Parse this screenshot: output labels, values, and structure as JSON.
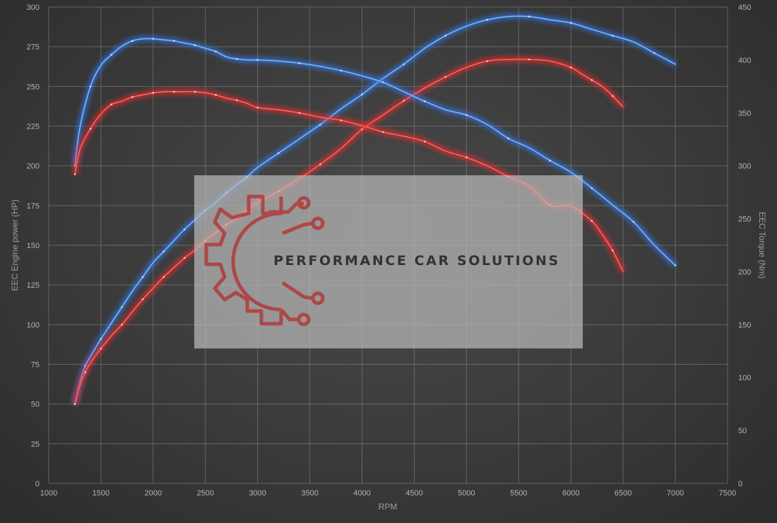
{
  "chart_data": {
    "type": "line",
    "xlabel": "RPM",
    "ylabel_left": "EEC Engine power (HP)",
    "ylabel_right": "EEC Torque (Nm)",
    "xlim": [
      1000,
      7500
    ],
    "ylim_left": [
      0,
      300
    ],
    "ylim_right": [
      0,
      450
    ],
    "x_ticks": [
      "1000",
      "1500",
      "2000",
      "2500",
      "3000",
      "3500",
      "4000",
      "4500",
      "5000",
      "5500",
      "6000",
      "6500",
      "7000",
      "7500"
    ],
    "y_ticks_left": [
      "0",
      "25",
      "50",
      "75",
      "100",
      "125",
      "150",
      "175",
      "200",
      "225",
      "250",
      "275",
      "300"
    ],
    "y_ticks_right": [
      "0",
      "50",
      "100",
      "150",
      "200",
      "250",
      "300",
      "350",
      "400",
      "450"
    ],
    "grid": true,
    "colors": {
      "blue": "#4a8ee8",
      "red": "#e53030",
      "blue_glow": "#2f7fff",
      "red_glow": "#ff2a2a"
    },
    "series": [
      {
        "color": "blue",
        "axis": "left",
        "x": [
          1250,
          1300,
          1350,
          1400,
          1500,
          1600,
          1700,
          1800,
          1900,
          2000,
          2100,
          2200,
          2300,
          2400,
          2500,
          2600,
          2700,
          2800,
          2900,
          3000,
          3200,
          3400,
          3600,
          3800,
          4000,
          4200,
          4400,
          4600,
          4800,
          5000,
          5200,
          5400,
          5600,
          5800,
          6000,
          6200,
          6400,
          6600,
          6800,
          7000
        ],
        "y": [
          50,
          64,
          74,
          80,
          91,
          101,
          111,
          121,
          130,
          139,
          146,
          153,
          160,
          166,
          172,
          177,
          183,
          188,
          193,
          199,
          208,
          217,
          226,
          236,
          245,
          255,
          264,
          274,
          282,
          288,
          292,
          294,
          294,
          292,
          290,
          286,
          282,
          278,
          271,
          264
        ]
      },
      {
        "color": "red",
        "axis": "left",
        "x": [
          1250,
          1300,
          1350,
          1400,
          1500,
          1600,
          1700,
          1800,
          1900,
          2000,
          2100,
          2200,
          2300,
          2400,
          2500,
          2600,
          2700,
          2800,
          2900,
          3000,
          3200,
          3400,
          3600,
          3800,
          4000,
          4200,
          4400,
          4600,
          4800,
          5000,
          5200,
          5400,
          5600,
          5800,
          6000,
          6100,
          6200,
          6300,
          6400,
          6500
        ],
        "y": [
          50,
          62,
          70,
          76,
          85,
          93,
          100,
          108,
          116,
          123,
          130,
          136,
          142,
          147,
          153,
          158,
          163,
          167,
          172,
          177,
          184,
          192,
          201,
          211,
          223,
          232,
          241,
          249,
          256,
          262,
          266,
          267,
          267,
          266,
          262,
          258,
          254,
          250,
          244,
          237
        ]
      },
      {
        "color": "blue",
        "axis": "right",
        "x": [
          1250,
          1300,
          1400,
          1500,
          1600,
          1700,
          1800,
          1900,
          2000,
          2100,
          2200,
          2300,
          2400,
          2500,
          2600,
          2700,
          2800,
          2900,
          3000,
          3200,
          3400,
          3600,
          3800,
          4000,
          4200,
          4400,
          4600,
          4800,
          5000,
          5200,
          5400,
          5600,
          5800,
          6000,
          6200,
          6400,
          6600,
          6800,
          7000
        ],
        "y": [
          300,
          337,
          375,
          395,
          405,
          413,
          418,
          420,
          420,
          419,
          418,
          416,
          414,
          411,
          408,
          403,
          401,
          400,
          400,
          399,
          397,
          394,
          390,
          385,
          379,
          370,
          361,
          353,
          348,
          339,
          326,
          317,
          305,
          294,
          279,
          263,
          247,
          225,
          206
        ]
      },
      {
        "color": "red",
        "axis": "right",
        "x": [
          1250,
          1300,
          1400,
          1500,
          1600,
          1700,
          1800,
          1900,
          2000,
          2100,
          2200,
          2300,
          2400,
          2500,
          2600,
          2700,
          2800,
          2900,
          3000,
          3200,
          3400,
          3600,
          3800,
          4000,
          4200,
          4400,
          4600,
          4800,
          5000,
          5200,
          5400,
          5600,
          5800,
          6000,
          6200,
          6300,
          6400,
          6500
        ],
        "y": [
          292,
          316,
          335,
          349,
          358,
          361,
          365,
          367,
          369,
          370,
          370,
          370,
          370,
          369,
          367,
          364,
          362,
          359,
          355,
          353,
          350,
          346,
          343,
          338,
          332,
          328,
          323,
          314,
          308,
          300,
          290,
          281,
          263,
          262,
          248,
          235,
          220,
          200
        ]
      }
    ]
  },
  "watermark": {
    "text": "PERFORMANCE CAR SOLUTIONS",
    "logo_icon": "gear-circuit-logo-icon",
    "logo_color": "#b04040"
  }
}
